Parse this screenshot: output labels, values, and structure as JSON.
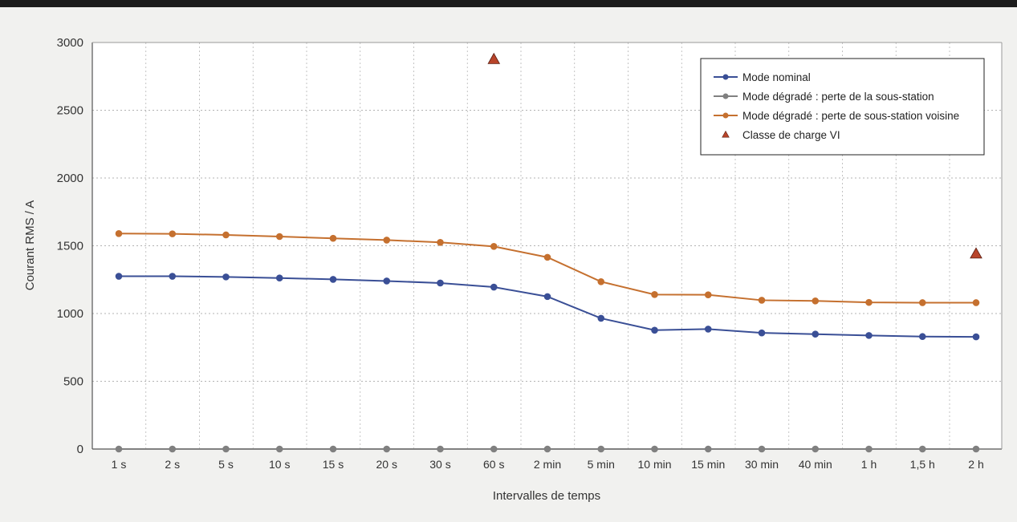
{
  "chart_data": {
    "type": "line",
    "categories": [
      "1 s",
      "2 s",
      "5 s",
      "10 s",
      "15 s",
      "20 s",
      "30 s",
      "60 s",
      "2 min",
      "5 min",
      "10 min",
      "15 min",
      "30 min",
      "40 min",
      "1 h",
      "1,5 h",
      "2 h"
    ],
    "xlabel": "Intervalles de temps",
    "ylabel": "Courant RMS / A",
    "ylim": [
      0,
      3000
    ],
    "yticks": [
      0,
      500,
      1000,
      1500,
      2000,
      2500,
      3000
    ],
    "grid": true,
    "legend_position": "top-right",
    "series": [
      {
        "name": "Mode nominal",
        "color": "#3a4f96",
        "marker": "circle",
        "values": [
          1275,
          1275,
          1270,
          1262,
          1252,
          1240,
          1225,
          1195,
          1125,
          965,
          877,
          885,
          857,
          848,
          838,
          830,
          828
        ]
      },
      {
        "name": "Mode dégradé : perte de la sous-station",
        "color": "#808080",
        "marker": "circle",
        "values": [
          0,
          0,
          0,
          0,
          0,
          0,
          0,
          0,
          0,
          0,
          0,
          0,
          0,
          0,
          0,
          0,
          0
        ]
      },
      {
        "name": "Mode dégradé : perte de sous-station voisine",
        "color": "#c5702f",
        "marker": "circle",
        "values": [
          1590,
          1588,
          1580,
          1568,
          1555,
          1542,
          1525,
          1495,
          1415,
          1235,
          1140,
          1138,
          1098,
          1093,
          1082,
          1080,
          1080
        ]
      },
      {
        "name": "Classe de charge VI",
        "color": "#b8442a",
        "marker": "triangle",
        "points": [
          {
            "x": "60 s",
            "y": 2875
          },
          {
            "x": "2 h",
            "y": 1440
          }
        ]
      }
    ]
  }
}
